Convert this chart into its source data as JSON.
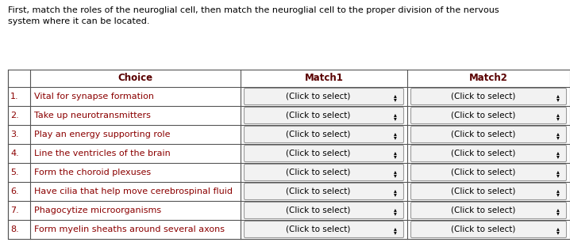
{
  "header_text": "First, match the roles of the neuroglial cell, then match the neuroglial cell to the proper division of the nervous\nsystem where it can be located.",
  "col_headers": [
    "",
    "Choice",
    "Match1",
    "Match2"
  ],
  "rows": [
    [
      "1.",
      "Vital for synapse formation",
      "(Click to select)",
      "(Click to select)"
    ],
    [
      "2.",
      "Take up neurotransmitters",
      "(Click to select)",
      "(Click to select)"
    ],
    [
      "3.",
      "Play an energy supporting role",
      "(Click to select)",
      "(Click to select)"
    ],
    [
      "4.",
      "Line the ventricles of the brain",
      "(Click to select)",
      "(Click to select)"
    ],
    [
      "5.",
      "Form the choroid plexuses",
      "(Click to select)",
      "(Click to select)"
    ],
    [
      "6.",
      "Have cilia that help move cerebrospinal fluid",
      "(Click to select)",
      "(Click to select)"
    ],
    [
      "7.",
      "Phagocytize microorganisms",
      "(Click to select)",
      "(Click to select)"
    ],
    [
      "8.",
      "Form myelin sheaths around several axons",
      "(Click to select)",
      "(Click to select)"
    ]
  ],
  "text_color": "#8B0000",
  "header_color": "#5a0000",
  "border_color": "#555555",
  "bg_color": "#ffffff",
  "font_size": 8.0,
  "header_font_size": 8.5,
  "fig_width": 7.18,
  "fig_height": 3.16,
  "dpi": 100
}
